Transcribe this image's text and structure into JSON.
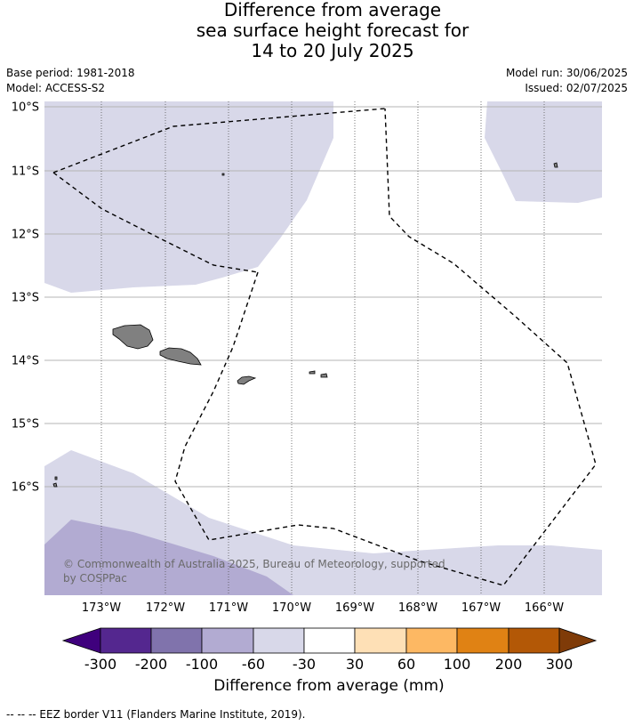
{
  "title": {
    "line1": "Difference from average",
    "line2": "sea surface height forecast for",
    "line3": "14 to 20 July 2025"
  },
  "meta_left": {
    "base_period": "Base period: 1981-2018",
    "model": "Model: ACCESS-S2"
  },
  "meta_right": {
    "model_run": "Model run: 30/06/2025",
    "issued": "Issued: 02/07/2025"
  },
  "map": {
    "lat_labels": [
      "10°S",
      "11°S",
      "12°S",
      "13°S",
      "14°S",
      "15°S",
      "16°S"
    ],
    "lon_labels": [
      "173°W",
      "172°W",
      "171°W",
      "170°W",
      "169°W",
      "168°W",
      "167°W",
      "166°W"
    ],
    "colors": {
      "band_-60_-30": "#d8d8e9",
      "band_-100_-60": "#b2abd2",
      "land": "#808080",
      "eez": "#000000"
    },
    "copyright": "© Commonwealth of Australia 2025, Bureau of Meteorology, supported by COSPPac"
  },
  "colorbar": {
    "title": "Difference from average (mm)",
    "ticks": [
      "-300",
      "-200",
      "-100",
      "-60",
      "-30",
      "30",
      "60",
      "100",
      "200",
      "300"
    ],
    "colors": [
      "#3f007d",
      "#54278f",
      "#8073ac",
      "#b2abd2",
      "#d8d8e9",
      "#ffffff",
      "#fee0b6",
      "#fdb863",
      "#e08214",
      "#b35806",
      "#7f3b08"
    ]
  },
  "footer": "--  --  -- EEZ border V11 (Flanders Marine Institute, 2019)."
}
